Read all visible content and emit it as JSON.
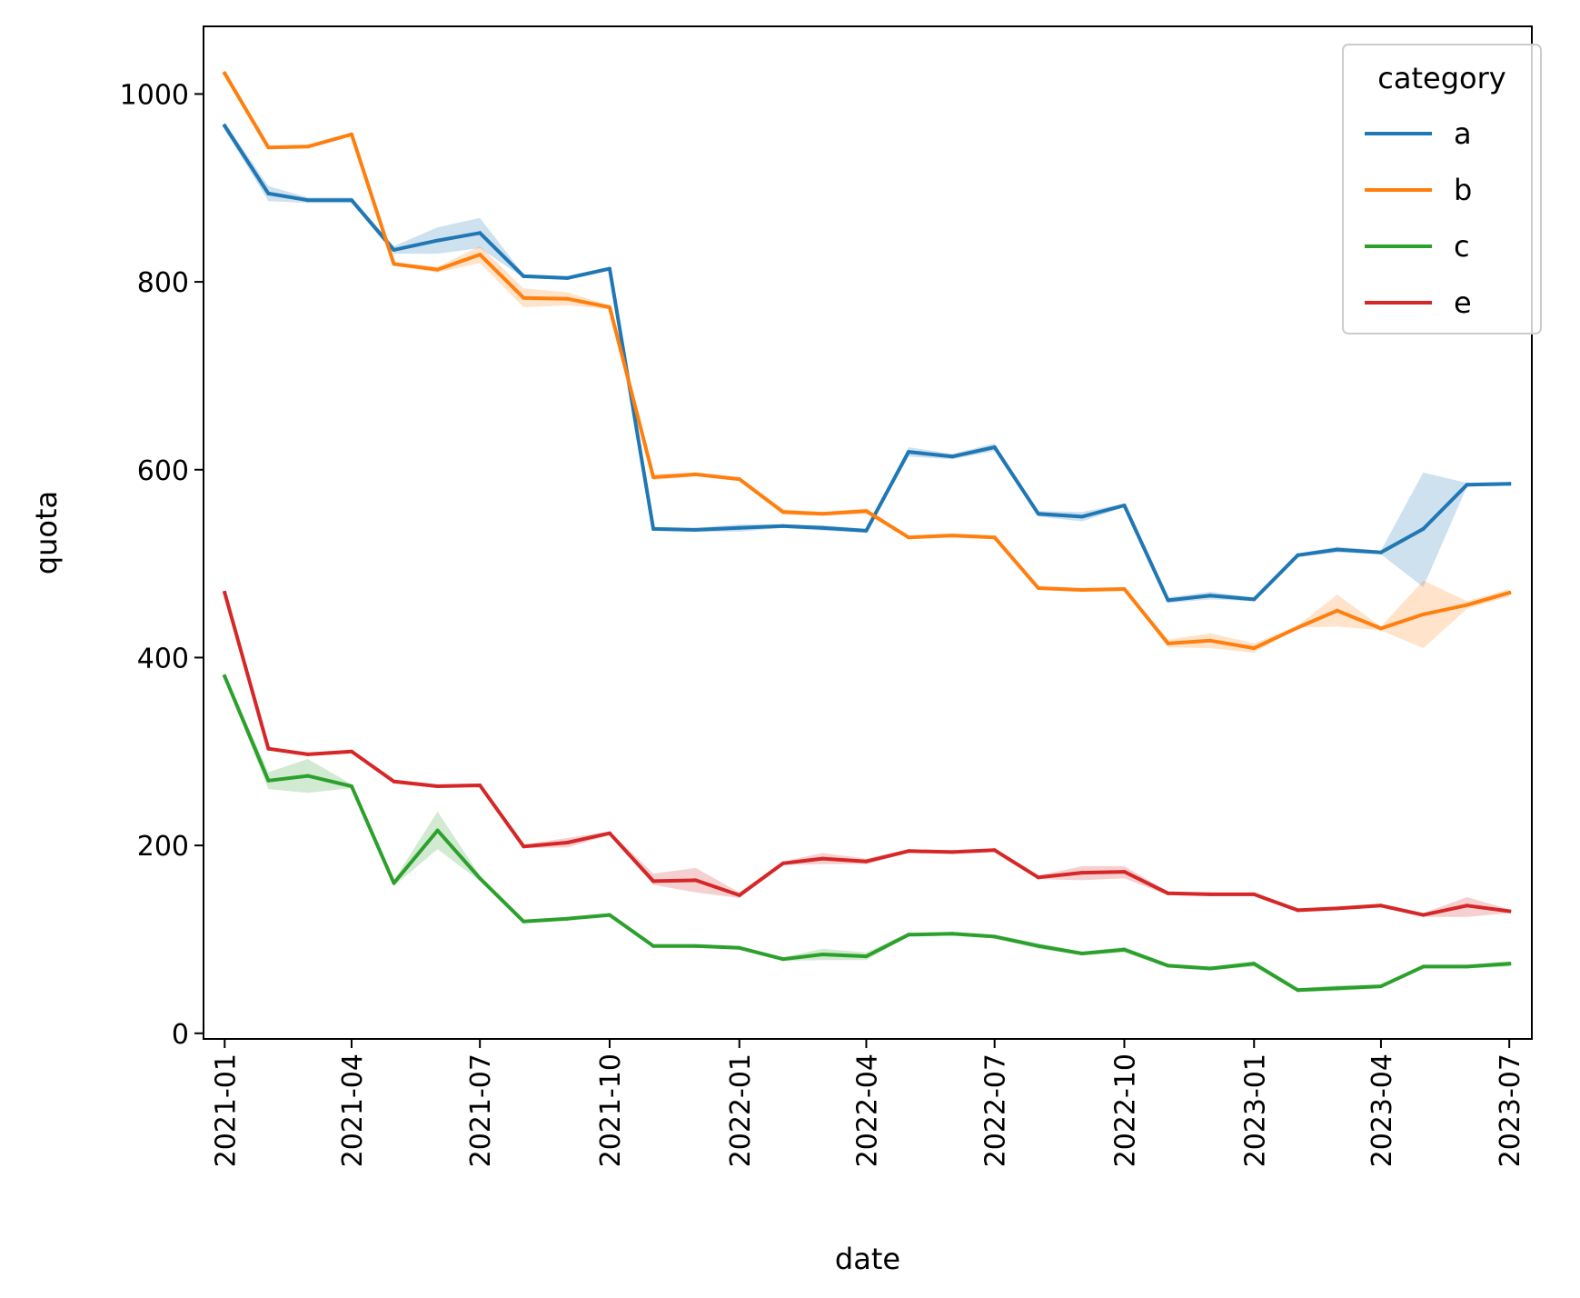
{
  "chart_data": {
    "type": "line",
    "xlabel": "date",
    "ylabel": "quota",
    "ylim": [
      -6,
      1072
    ],
    "xlim": [
      "2020-12-17",
      "2023-07-17"
    ],
    "x_ticks": [
      "2021-01",
      "2021-04",
      "2021-07",
      "2021-10",
      "2022-01",
      "2022-04",
      "2022-07",
      "2022-10",
      "2023-01",
      "2023-04",
      "2023-07"
    ],
    "y_ticks": [
      0,
      200,
      400,
      600,
      800,
      1000
    ],
    "grid": false,
    "legend": {
      "title": "category",
      "position": "top-right"
    },
    "x": [
      "2021-01-01",
      "2021-02-01",
      "2021-03-01",
      "2021-04-01",
      "2021-05-01",
      "2021-06-01",
      "2021-07-01",
      "2021-08-01",
      "2021-09-01",
      "2021-10-01",
      "2021-11-01",
      "2021-12-01",
      "2022-01-01",
      "2022-02-01",
      "2022-03-01",
      "2022-04-01",
      "2022-05-01",
      "2022-06-01",
      "2022-07-01",
      "2022-08-01",
      "2022-09-01",
      "2022-10-01",
      "2022-11-01",
      "2022-12-01",
      "2023-01-01",
      "2023-02-01",
      "2023-03-01",
      "2023-04-01",
      "2023-05-01",
      "2023-06-01",
      "2023-07-01"
    ],
    "series": [
      {
        "name": "a",
        "color": "#1f77b4",
        "values": [
          966,
          894,
          887,
          887,
          834,
          844,
          852,
          806,
          804,
          814,
          537,
          536,
          538,
          540,
          538,
          535,
          619,
          614,
          624,
          553,
          550,
          562,
          461,
          466,
          462,
          509,
          515,
          512,
          537,
          584,
          585
        ],
        "ci_low": [
          962,
          886,
          884,
          884,
          830,
          830,
          836,
          804,
          802,
          812,
          535,
          534,
          534,
          538,
          535,
          533,
          614,
          611,
          620,
          550,
          545,
          560,
          458,
          462,
          460,
          507,
          512,
          510,
          475,
          582,
          583
        ],
        "ci_high": [
          970,
          902,
          890,
          890,
          838,
          858,
          868,
          808,
          806,
          816,
          539,
          538,
          542,
          542,
          541,
          537,
          624,
          617,
          628,
          556,
          555,
          564,
          464,
          470,
          464,
          511,
          518,
          514,
          597,
          586,
          587
        ]
      },
      {
        "name": "b",
        "color": "#ff7f0e",
        "values": [
          1022,
          943,
          944,
          957,
          819,
          813,
          829,
          783,
          782,
          773,
          592,
          595,
          590,
          555,
          553,
          556,
          528,
          530,
          528,
          474,
          472,
          473,
          415,
          418,
          410,
          432,
          450,
          431,
          446,
          456,
          469
        ],
        "ci_low": [
          1020,
          941,
          942,
          955,
          817,
          810,
          820,
          773,
          775,
          771,
          589,
          593,
          588,
          552,
          551,
          553,
          526,
          528,
          526,
          472,
          470,
          471,
          411,
          410,
          405,
          432,
          433,
          429,
          410,
          452,
          465
        ],
        "ci_high": [
          1024,
          945,
          946,
          959,
          821,
          816,
          838,
          793,
          789,
          775,
          595,
          597,
          592,
          558,
          555,
          559,
          530,
          532,
          530,
          476,
          474,
          475,
          419,
          426,
          415,
          434,
          467,
          433,
          482,
          460,
          473
        ]
      },
      {
        "name": "c",
        "color": "#2ca02c",
        "values": [
          380,
          269,
          274,
          263,
          160,
          216,
          165,
          119,
          122,
          126,
          93,
          93,
          91,
          79,
          84,
          82,
          105,
          106,
          103,
          93,
          85,
          89,
          72,
          69,
          74,
          46,
          48,
          50,
          71,
          71,
          74
        ],
        "ci_low": [
          377,
          260,
          256,
          261,
          157,
          196,
          162,
          117,
          120,
          124,
          91,
          91,
          89,
          77,
          78,
          78,
          103,
          104,
          101,
          90,
          83,
          86,
          70,
          67,
          71,
          44,
          45,
          48,
          69,
          69,
          71
        ],
        "ci_high": [
          383,
          278,
          292,
          265,
          163,
          236,
          168,
          121,
          124,
          128,
          95,
          95,
          93,
          81,
          90,
          86,
          107,
          108,
          105,
          96,
          87,
          92,
          74,
          71,
          77,
          48,
          51,
          52,
          73,
          73,
          77
        ]
      },
      {
        "name": "e",
        "color": "#d62728",
        "values": [
          469,
          303,
          297,
          300,
          268,
          263,
          264,
          199,
          203,
          213,
          162,
          163,
          147,
          181,
          186,
          183,
          194,
          193,
          195,
          166,
          171,
          172,
          149,
          148,
          148,
          131,
          133,
          136,
          126,
          136,
          130
        ],
        "ci_low": [
          466,
          301,
          295,
          298,
          266,
          261,
          262,
          197,
          198,
          211,
          158,
          150,
          144,
          179,
          180,
          180,
          192,
          191,
          193,
          164,
          163,
          165,
          147,
          146,
          146,
          129,
          131,
          134,
          124,
          124,
          128
        ],
        "ci_high": [
          472,
          305,
          299,
          302,
          270,
          265,
          266,
          201,
          208,
          215,
          170,
          176,
          150,
          183,
          192,
          186,
          196,
          195,
          197,
          168,
          178,
          178,
          151,
          150,
          150,
          133,
          135,
          138,
          128,
          145,
          132
        ]
      }
    ]
  }
}
